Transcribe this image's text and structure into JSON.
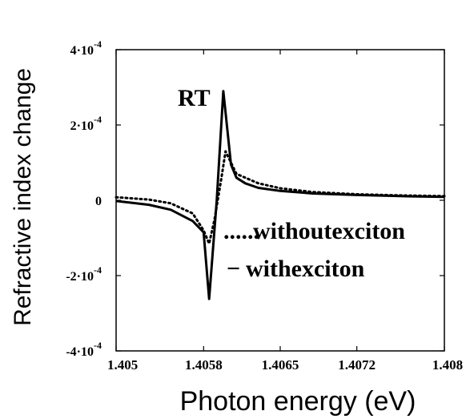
{
  "chart_data": {
    "type": "line",
    "xlabel": "Photon energy (eV)",
    "ylabel": "Refractive index change",
    "xlim": [
      1.405,
      1.408
    ],
    "ylim": [
      -0.0004,
      0.0004
    ],
    "x_ticks": [
      {
        "value": 1.405,
        "label": "1.405"
      },
      {
        "value": 1.4058,
        "label": "1.4058"
      },
      {
        "value": 1.4065,
        "label": "1.4065"
      },
      {
        "value": 1.4072,
        "label": "1.4072"
      },
      {
        "value": 1.408,
        "label": "1.408"
      }
    ],
    "y_ticks": [
      {
        "value": 0.0004,
        "base": "4·10",
        "exp": "-4"
      },
      {
        "value": 0.0002,
        "base": "2·10",
        "exp": "-4"
      },
      {
        "value": 0,
        "base": "0",
        "exp": ""
      },
      {
        "value": -0.0002,
        "base": "-2·10",
        "exp": "-4"
      },
      {
        "value": -0.0004,
        "base": "-4·10",
        "exp": "-4"
      }
    ],
    "grid": false,
    "annotation": "RT",
    "legend": {
      "placement": "lower-right",
      "entries": [
        {
          "marker": "......",
          "label": "withoutexciton"
        },
        {
          "marker": "−",
          "label": "withexciton"
        }
      ]
    },
    "series": [
      {
        "name": "withexciton",
        "style": "solid",
        "color": "#000000",
        "x": [
          1.405,
          1.4053,
          1.4055,
          1.4057,
          1.4058,
          1.40585,
          1.40592,
          1.40598,
          1.40605,
          1.4061,
          1.40618,
          1.4063,
          1.4065,
          1.4068,
          1.4072,
          1.4076,
          1.408
        ],
        "y": [
          -2e-06,
          -1.2e-05,
          -2.5e-05,
          -5.5e-05,
          -8.5e-05,
          -0.000262,
          0.0,
          0.00029,
          9.5e-05,
          6e-05,
          4.5e-05,
          3.3e-05,
          2.5e-05,
          1.8e-05,
          1.4e-05,
          1.1e-05,
          9e-06
        ]
      },
      {
        "name": "withoutexciton",
        "style": "dotted",
        "color": "#000000",
        "x": [
          1.405,
          1.4053,
          1.4055,
          1.4057,
          1.4058,
          1.40585,
          1.4059,
          1.40596,
          1.406,
          1.40605,
          1.4061,
          1.4063,
          1.4065,
          1.4068,
          1.4072,
          1.4076,
          1.408
        ],
        "y": [
          8e-06,
          2e-06,
          -8e-06,
          -3.5e-05,
          -8e-05,
          -0.000115,
          -5e-05,
          5.5e-05,
          0.00013,
          0.0001,
          7e-05,
          4.5e-05,
          3.2e-05,
          2.2e-05,
          1.6e-05,
          1.3e-05,
          1.1e-05
        ]
      }
    ]
  }
}
